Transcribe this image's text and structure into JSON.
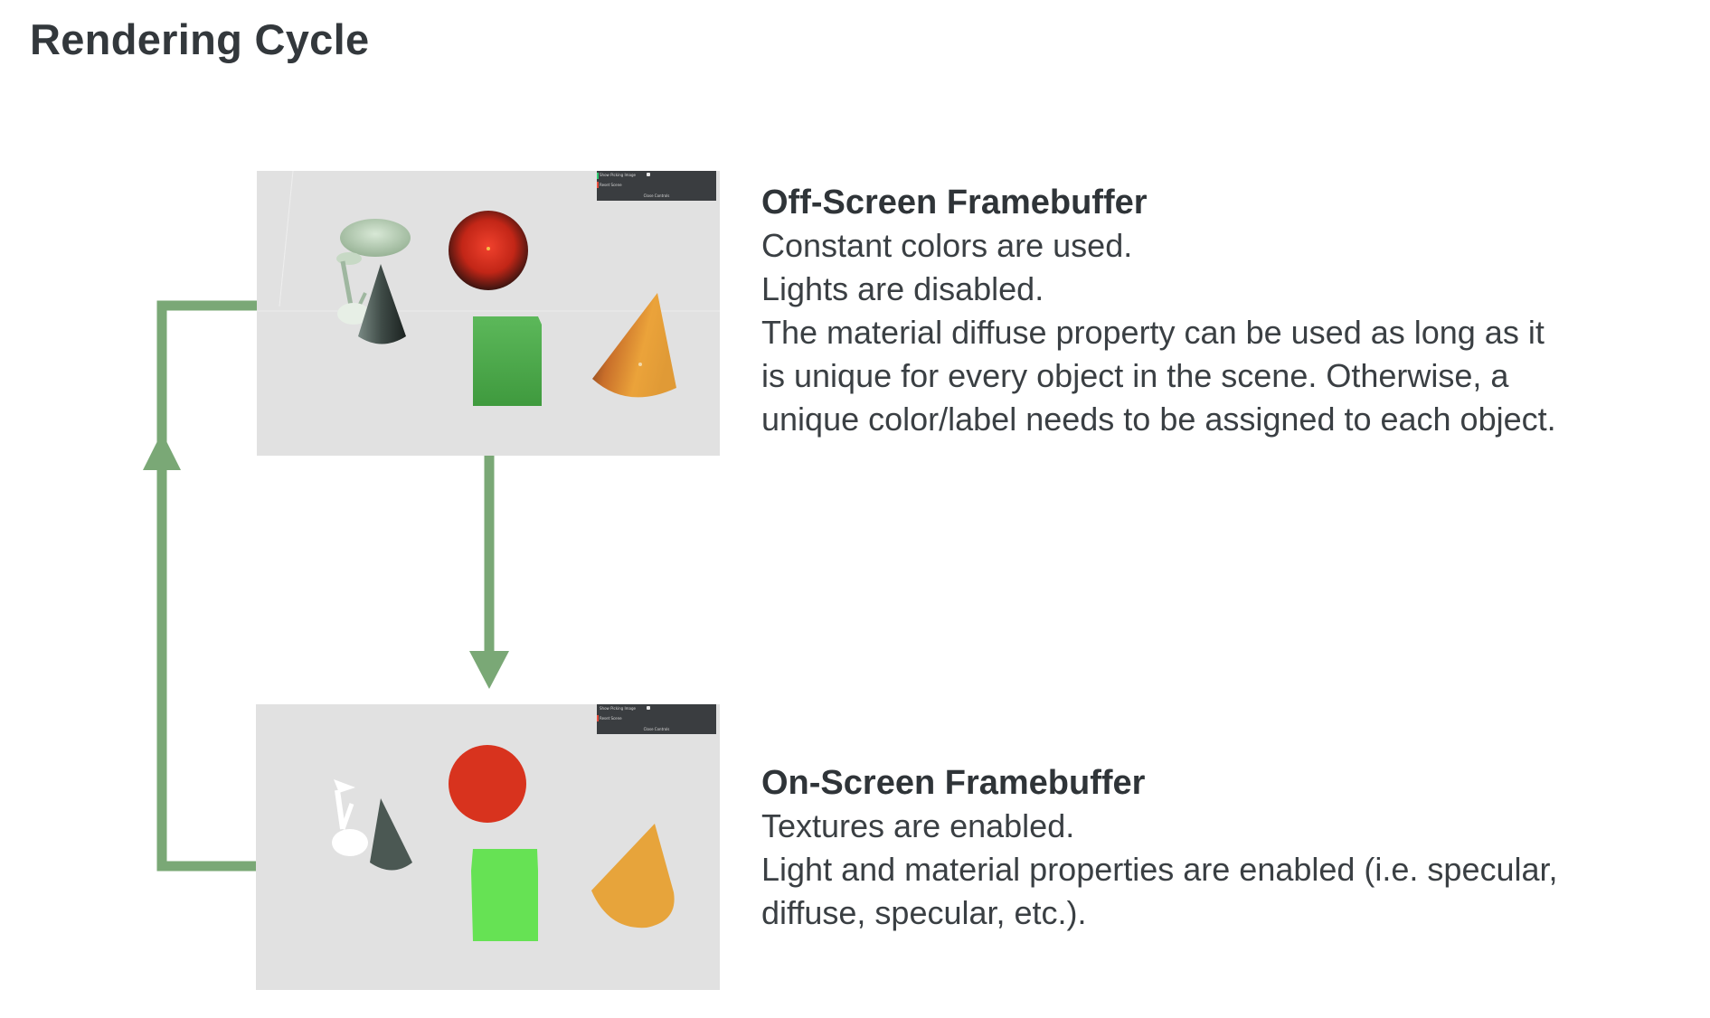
{
  "title": "Rendering Cycle",
  "colors": {
    "arrow": "#7aa876",
    "screen_bg": "#e1e1e1",
    "title_text": "#33383c",
    "body_text": "#3a3f43"
  },
  "offscreen": {
    "heading": "Off-Screen Framebuffer",
    "lines": [
      "Constant colors are used.",
      "Lights are disabled.",
      "The material diffuse property can be used as long as it",
      "is unique for every object in the scene. Otherwise, a",
      "unique color/label needs to be assigned to each object."
    ],
    "panel": {
      "show_picking": "Show Picking Image",
      "reset_scene": "Reset Scene",
      "close_controls": "Close Controls"
    }
  },
  "onscreen": {
    "heading": "On-Screen Framebuffer",
    "lines": [
      "Textures are enabled.",
      "Light and material properties are enabled (i.e. specular,",
      "diffuse, specular, etc.)."
    ],
    "panel": {
      "show_picking": "Show Picking Image",
      "reset_scene": "Reset Scene",
      "close_controls": "Close Controls"
    }
  },
  "scene_objects": [
    "lamp",
    "cone",
    "sphere",
    "cube",
    "orange-cone"
  ]
}
